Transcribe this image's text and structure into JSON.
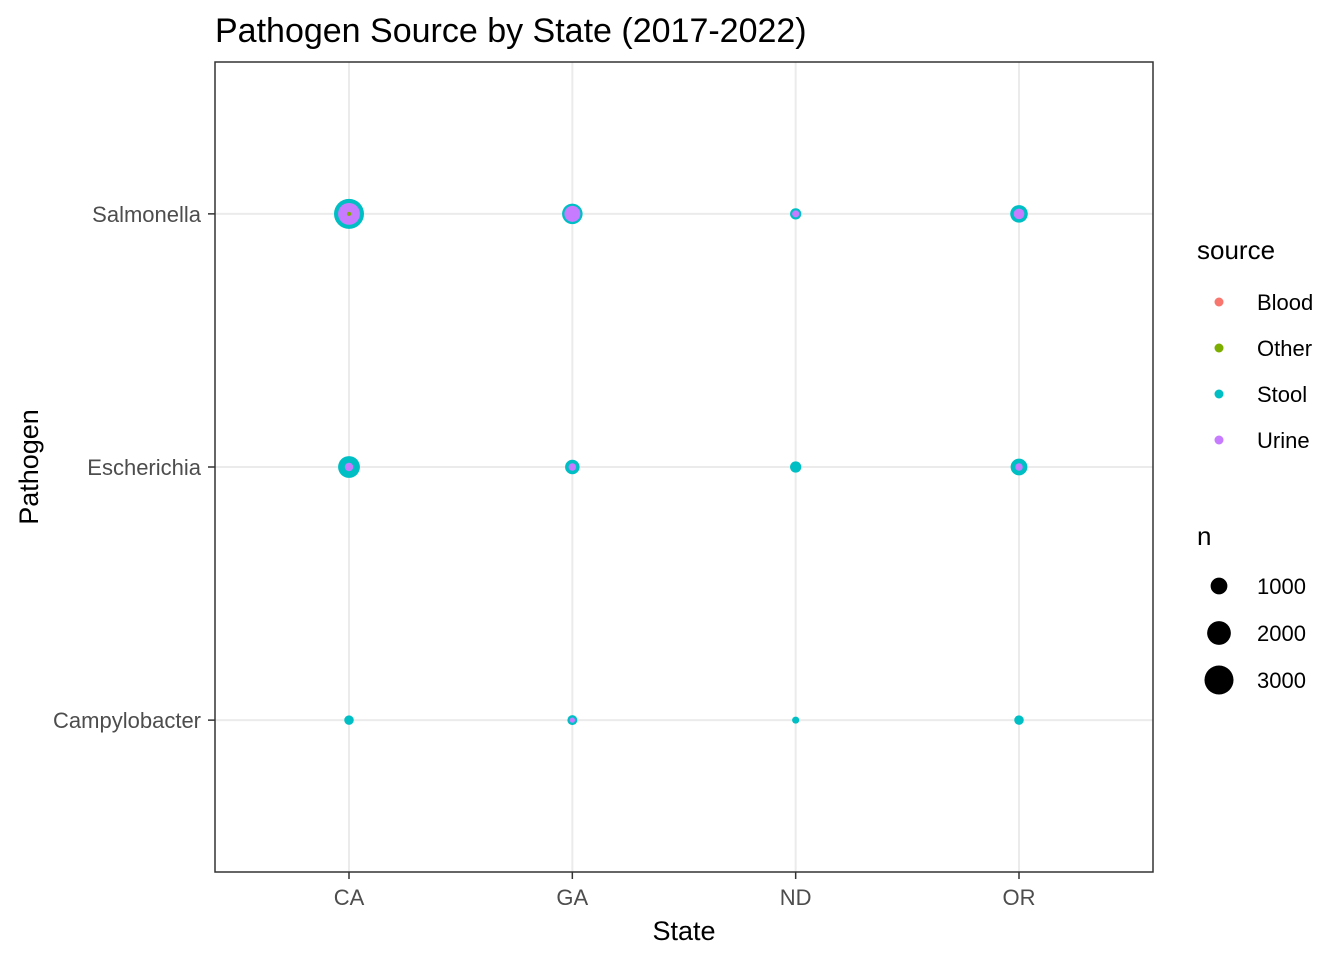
{
  "chart_data": {
    "type": "scatter",
    "title": "Pathogen Source by State (2017-2022)",
    "xlabel": "State",
    "ylabel": "Pathogen",
    "x_categories": [
      "CA",
      "GA",
      "ND",
      "OR"
    ],
    "y_categories": [
      "Campylobacter",
      "Escherichia",
      "Salmonella"
    ],
    "grid": true,
    "legend_position": "right",
    "source_legend": {
      "title": "source",
      "entries": [
        {
          "name": "Blood",
          "color": "#F8766D"
        },
        {
          "name": "Other",
          "color": "#7CAE00"
        },
        {
          "name": "Stool",
          "color": "#00BFC4"
        },
        {
          "name": "Urine",
          "color": "#C77CFF"
        }
      ]
    },
    "size_legend": {
      "title": "n",
      "breaks": [
        1000,
        2000,
        3000
      ],
      "labels": [
        "1000",
        "2000",
        "3000"
      ]
    },
    "points": [
      {
        "state": "CA",
        "pathogen": "Salmonella",
        "source": "Blood",
        "n": 60
      },
      {
        "state": "CA",
        "pathogen": "Salmonella",
        "source": "Other",
        "n": 60
      },
      {
        "state": "CA",
        "pathogen": "Salmonella",
        "source": "Stool",
        "n": 3200
      },
      {
        "state": "CA",
        "pathogen": "Salmonella",
        "source": "Urine",
        "n": 1700
      },
      {
        "state": "GA",
        "pathogen": "Salmonella",
        "source": "Stool",
        "n": 1500
      },
      {
        "state": "GA",
        "pathogen": "Salmonella",
        "source": "Urine",
        "n": 900
      },
      {
        "state": "ND",
        "pathogen": "Salmonella",
        "source": "Stool",
        "n": 450
      },
      {
        "state": "ND",
        "pathogen": "Salmonella",
        "source": "Urine",
        "n": 180
      },
      {
        "state": "OR",
        "pathogen": "Salmonella",
        "source": "Stool",
        "n": 1100
      },
      {
        "state": "OR",
        "pathogen": "Salmonella",
        "source": "Urine",
        "n": 400
      },
      {
        "state": "CA",
        "pathogen": "Escherichia",
        "source": "Stool",
        "n": 1700
      },
      {
        "state": "CA",
        "pathogen": "Escherichia",
        "source": "Urine",
        "n": 250
      },
      {
        "state": "GA",
        "pathogen": "Escherichia",
        "source": "Stool",
        "n": 750
      },
      {
        "state": "GA",
        "pathogen": "Escherichia",
        "source": "Urine",
        "n": 200
      },
      {
        "state": "ND",
        "pathogen": "Escherichia",
        "source": "Stool",
        "n": 450
      },
      {
        "state": "OR",
        "pathogen": "Escherichia",
        "source": "Stool",
        "n": 1000
      },
      {
        "state": "OR",
        "pathogen": "Escherichia",
        "source": "Urine",
        "n": 200
      },
      {
        "state": "CA",
        "pathogen": "Campylobacter",
        "source": "Stool",
        "n": 320
      },
      {
        "state": "GA",
        "pathogen": "Campylobacter",
        "source": "Stool",
        "n": 350
      },
      {
        "state": "GA",
        "pathogen": "Campylobacter",
        "source": "Urine",
        "n": 100
      },
      {
        "state": "ND",
        "pathogen": "Campylobacter",
        "source": "Stool",
        "n": 180
      },
      {
        "state": "OR",
        "pathogen": "Campylobacter",
        "source": "Stool",
        "n": 320
      }
    ]
  }
}
